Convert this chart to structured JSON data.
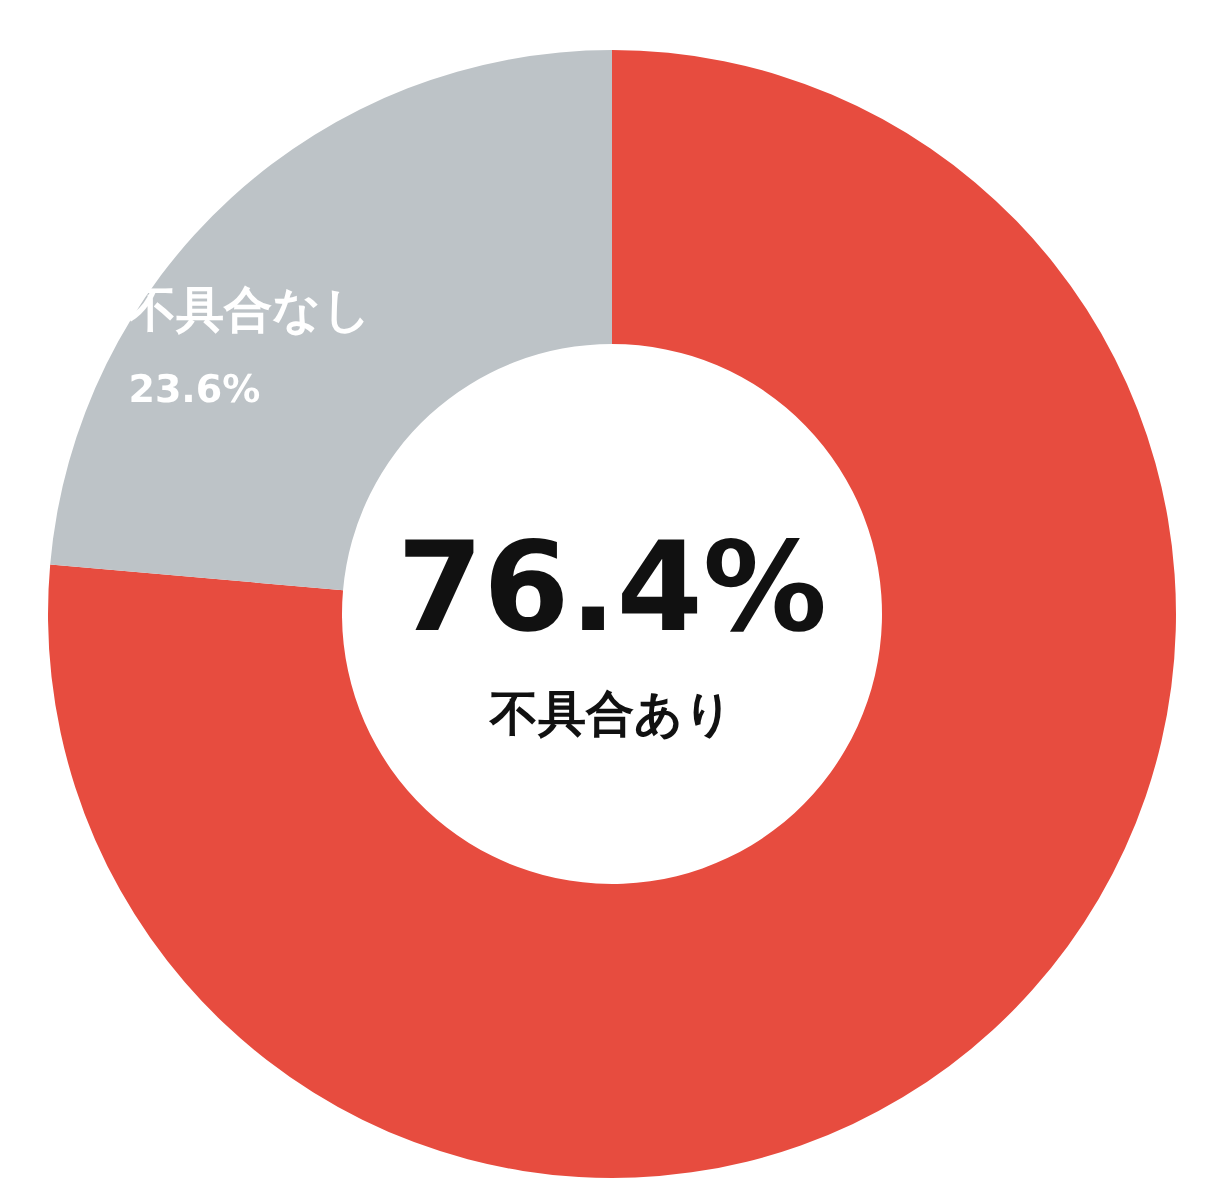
{
  "chart_data": {
    "type": "donut",
    "categories": [
      "不具合あり",
      "不具合なし"
    ],
    "values": [
      76.4,
      23.6
    ],
    "colors": [
      "#e74c3f",
      "#bdc3c7"
    ],
    "value_labels": [
      "76.4%",
      "23.6%"
    ]
  }
}
